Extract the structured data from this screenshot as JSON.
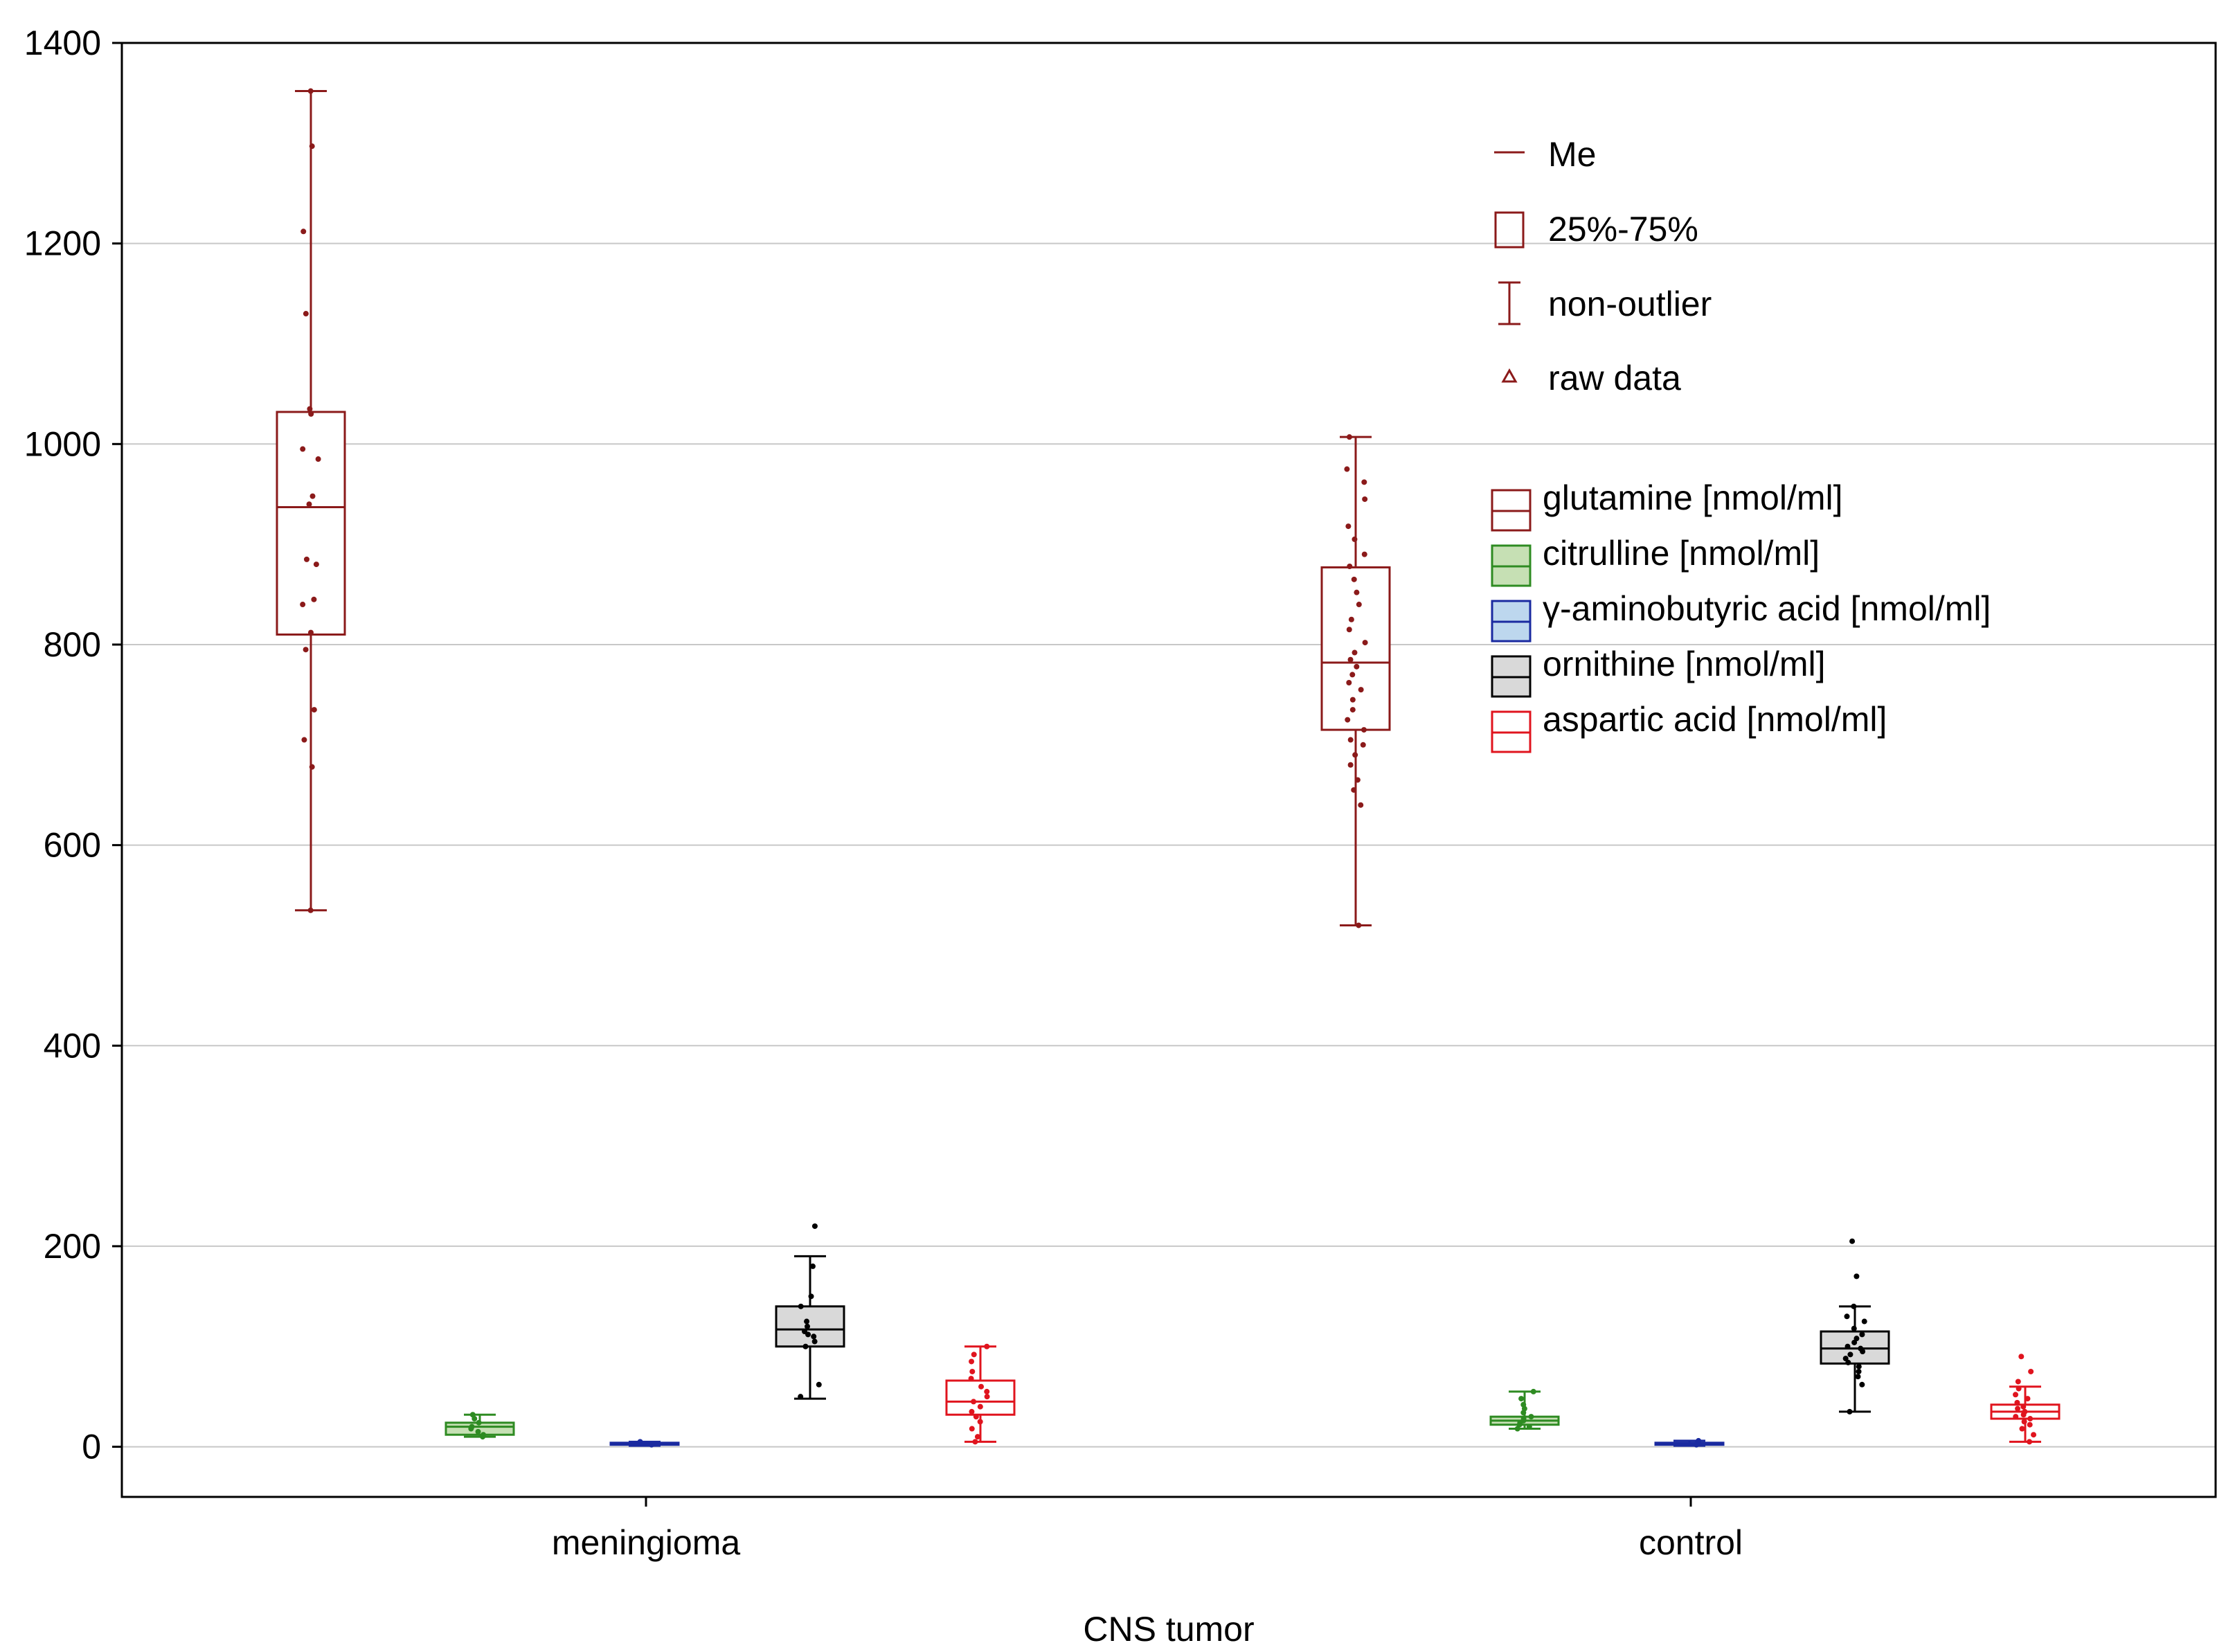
{
  "chart_data": {
    "type": "boxplot",
    "xlabel": "CNS tumor",
    "ylabel": "",
    "ylim": [
      -50,
      1400
    ],
    "yticks": [
      0,
      200,
      400,
      600,
      800,
      1000,
      1200,
      1400
    ],
    "grid": true,
    "categories": [
      "meningioma",
      "control"
    ],
    "legend_stats": [
      {
        "key": "median",
        "label": "Me"
      },
      {
        "key": "box",
        "label": "25%-75%"
      },
      {
        "key": "whisker",
        "label": "non-outlier"
      },
      {
        "key": "raw",
        "label": "raw data"
      }
    ],
    "series": [
      {
        "name": "glutamine [nmol/ml]",
        "color": "#8b1a1a",
        "fill": "#ffffff",
        "stats": [
          {
            "min": 535,
            "q1": 810,
            "median": 937,
            "q3": 1032,
            "max": 1352
          },
          {
            "min": 520,
            "q1": 715,
            "median": 782,
            "q3": 877,
            "max": 1007
          }
        ],
        "raw": [
          [
            1352,
            1297,
            1212,
            1130,
            1035,
            1030,
            995,
            985,
            948,
            940,
            885,
            880,
            845,
            840,
            812,
            795,
            735,
            705,
            678,
            535
          ],
          [
            1007,
            975,
            962,
            945,
            918,
            905,
            890,
            878,
            865,
            852,
            840,
            825,
            815,
            802,
            792,
            785,
            778,
            770,
            762,
            755,
            745,
            735,
            725,
            715,
            705,
            700,
            690,
            680,
            665,
            655,
            640,
            520
          ]
        ]
      },
      {
        "name": "citrulline [nmol/ml]",
        "color": "#2e8b22",
        "fill": "#c6e0b4",
        "stats": [
          {
            "min": 10,
            "q1": 12,
            "median": 20,
            "q3": 24,
            "max": 32
          },
          {
            "min": 18,
            "q1": 22,
            "median": 26,
            "q3": 30,
            "max": 55
          }
        ],
        "raw": [
          [
            32,
            28,
            24,
            20,
            18,
            15,
            12,
            10
          ],
          [
            55,
            48,
            42,
            38,
            34,
            30,
            28,
            26,
            24,
            22,
            20,
            18
          ]
        ]
      },
      {
        "name": "γ-aminobutyric acid [nmol/ml]",
        "color": "#1a2aa0",
        "fill": "#bdd7ee",
        "stats": [
          {
            "min": 1,
            "q1": 2,
            "median": 3,
            "q3": 4,
            "max": 5
          },
          {
            "min": 1,
            "q1": 2,
            "median": 3,
            "q3": 4,
            "max": 6
          }
        ],
        "raw": [
          [
            5,
            3,
            2
          ],
          [
            6,
            4,
            2
          ]
        ]
      },
      {
        "name": "ornithine [nmol/ml]",
        "color": "#000000",
        "fill": "#d9d9d9",
        "stats": [
          {
            "min": 48,
            "q1": 100,
            "median": 117,
            "q3": 140,
            "max": 190
          },
          {
            "min": 35,
            "q1": 83,
            "median": 98,
            "q3": 115,
            "max": 140
          }
        ],
        "raw": [
          [
            220,
            180,
            150,
            140,
            125,
            120,
            115,
            112,
            110,
            105,
            100,
            62,
            50
          ],
          [
            205,
            170,
            140,
            130,
            125,
            118,
            112,
            108,
            104,
            100,
            98,
            95,
            92,
            88,
            84,
            80,
            75,
            70,
            62,
            35
          ]
        ]
      },
      {
        "name": "aspartic acid [nmol/ml]",
        "color": "#e0141e",
        "fill": "#ffffff",
        "stats": [
          {
            "min": 5,
            "q1": 32,
            "median": 45,
            "q3": 66,
            "max": 100
          },
          {
            "min": 5,
            "q1": 28,
            "median": 35,
            "q3": 42,
            "max": 60
          }
        ],
        "raw": [
          [
            100,
            92,
            85,
            75,
            68,
            60,
            55,
            50,
            45,
            40,
            35,
            30,
            25,
            18,
            10,
            5
          ],
          [
            90,
            75,
            65,
            58,
            52,
            48,
            44,
            40,
            38,
            35,
            32,
            30,
            28,
            25,
            22,
            18,
            12,
            5
          ]
        ]
      }
    ]
  }
}
